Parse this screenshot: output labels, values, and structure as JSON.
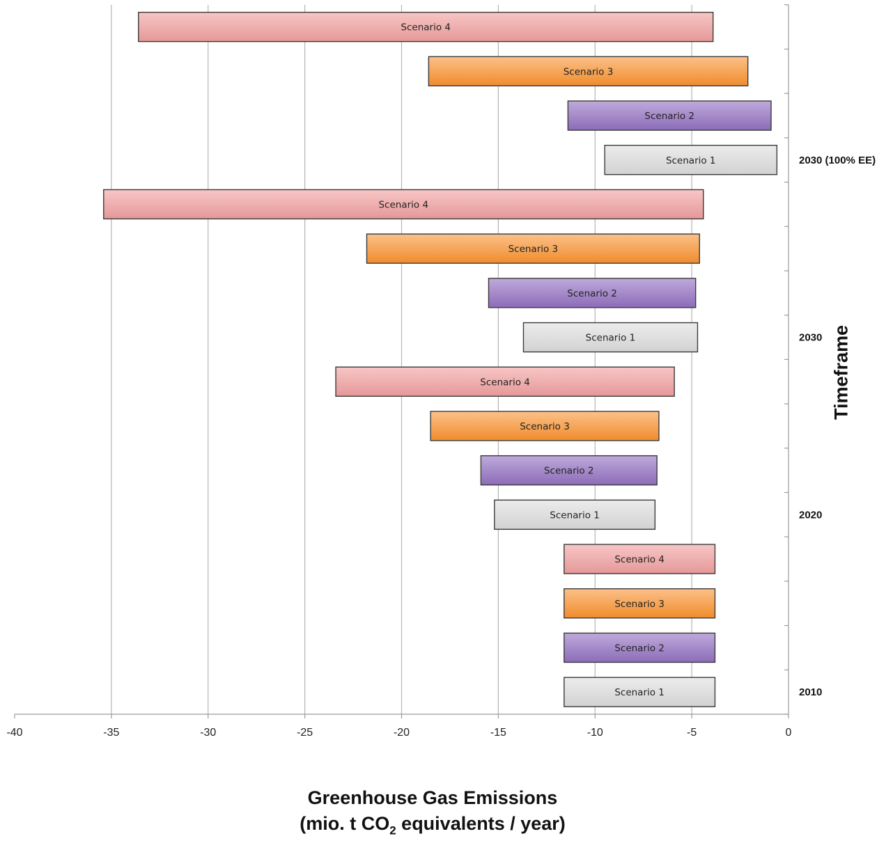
{
  "chart_data": {
    "type": "bar",
    "orientation": "horizontal",
    "floating_bars": true,
    "xlabel_line1": "Greenhouse Gas Emissions",
    "xlabel_line2_pre": "(mio. t CO",
    "xlabel_line2_sub": "2",
    "xlabel_line2_post": " equivalents / year)",
    "ylabel": "Timeframe",
    "xlim": [
      -40,
      0
    ],
    "x_ticks": [
      -40,
      -35,
      -30,
      -25,
      -20,
      -15,
      -10,
      -5,
      0
    ],
    "x_tick_labels": [
      "-40",
      "-35",
      "-30",
      "-25",
      "-20",
      "-15",
      "-10",
      "-5",
      "0"
    ],
    "grid": "vertical",
    "groups": [
      {
        "label": "2010",
        "bars": [
          {
            "series": "Scenario 1",
            "label": "Scenario 1",
            "from": -11.6,
            "to": -3.8
          },
          {
            "series": "Scenario 2",
            "label": "Scenario 2",
            "from": -11.6,
            "to": -3.8
          },
          {
            "series": "Scenario 3",
            "label": "Scenario 3",
            "from": -11.6,
            "to": -3.8
          },
          {
            "series": "Scenario 4",
            "label": "Scenario 4",
            "from": -11.6,
            "to": -3.8
          }
        ]
      },
      {
        "label": "2020",
        "bars": [
          {
            "series": "Scenario 1",
            "label": "Scenario 1",
            "from": -15.2,
            "to": -6.9
          },
          {
            "series": "Scenario 2",
            "label": "Scenario 2",
            "from": -15.9,
            "to": -6.8
          },
          {
            "series": "Scenario 3",
            "label": "Scenario 3",
            "from": -18.5,
            "to": -6.7
          },
          {
            "series": "Scenario 4",
            "label": "Scenario 4",
            "from": -23.4,
            "to": -5.9
          }
        ]
      },
      {
        "label": "2030",
        "bars": [
          {
            "series": "Scenario 1",
            "label": "Scenario 1",
            "from": -13.7,
            "to": -4.7
          },
          {
            "series": "Scenario 2",
            "label": "Scenario 2",
            "from": -15.5,
            "to": -4.8
          },
          {
            "series": "Scenario 3",
            "label": "Scenario 3",
            "from": -21.8,
            "to": -4.6
          },
          {
            "series": "Scenario 4",
            "label": "Scenario 4",
            "from": -35.4,
            "to": -4.4
          }
        ]
      },
      {
        "label": "2030 (100% EE)",
        "bars": [
          {
            "series": "Scenario 1",
            "label": "Scenario 1",
            "from": -9.5,
            "to": -0.6
          },
          {
            "series": "Scenario 2",
            "label": "Scenario 2",
            "from": -11.4,
            "to": -0.9
          },
          {
            "series": "Scenario 3",
            "label": "Scenario 3",
            "from": -18.6,
            "to": -2.1
          },
          {
            "series": "Scenario 4",
            "label": "Scenario 4",
            "from": -33.6,
            "to": -3.9
          }
        ]
      }
    ],
    "series_colors": {
      "Scenario 1": {
        "light": "#ececec",
        "dark": "#d2d2d2"
      },
      "Scenario 2": {
        "light": "#bfaadb",
        "dark": "#8c6cb8"
      },
      "Scenario 3": {
        "light": "#fbc189",
        "dark": "#f08c2c"
      },
      "Scenario 4": {
        "light": "#f8c6c6",
        "dark": "#e59898"
      }
    }
  }
}
